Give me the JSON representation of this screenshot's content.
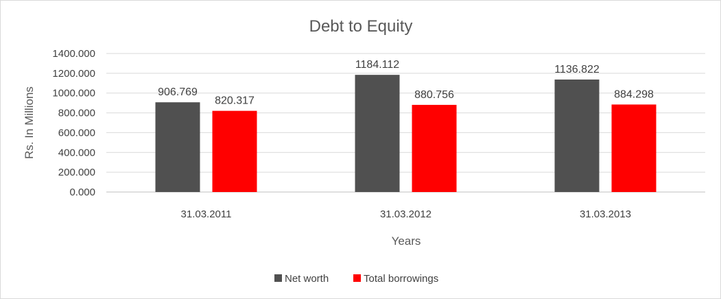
{
  "chart_data": {
    "type": "bar",
    "title": "Debt to Equity",
    "xlabel": "Years",
    "ylabel": "Rs. In Millions",
    "categories": [
      "31.03.2011",
      "31.03.2012",
      "31.03.2013"
    ],
    "series": [
      {
        "name": "Net worth",
        "values": [
          906.769,
          1184.112,
          1136.822
        ],
        "labels": [
          "906.769",
          "1184.112",
          "1136.822"
        ],
        "color": "#505050"
      },
      {
        "name": "Total borrowings",
        "values": [
          820.317,
          880.756,
          884.298
        ],
        "labels": [
          "820.317",
          "880.756",
          "884.298"
        ],
        "color": "#ff0000"
      }
    ],
    "ylim": [
      0,
      1400
    ],
    "yticks": [
      "0.000",
      "200.000",
      "400.000",
      "600.000",
      "800.000",
      "1000.000",
      "1200.000",
      "1400.000"
    ],
    "ytick_values": [
      0,
      200,
      400,
      600,
      800,
      1000,
      1200,
      1400
    ],
    "grid": true,
    "legend": "bottom"
  }
}
